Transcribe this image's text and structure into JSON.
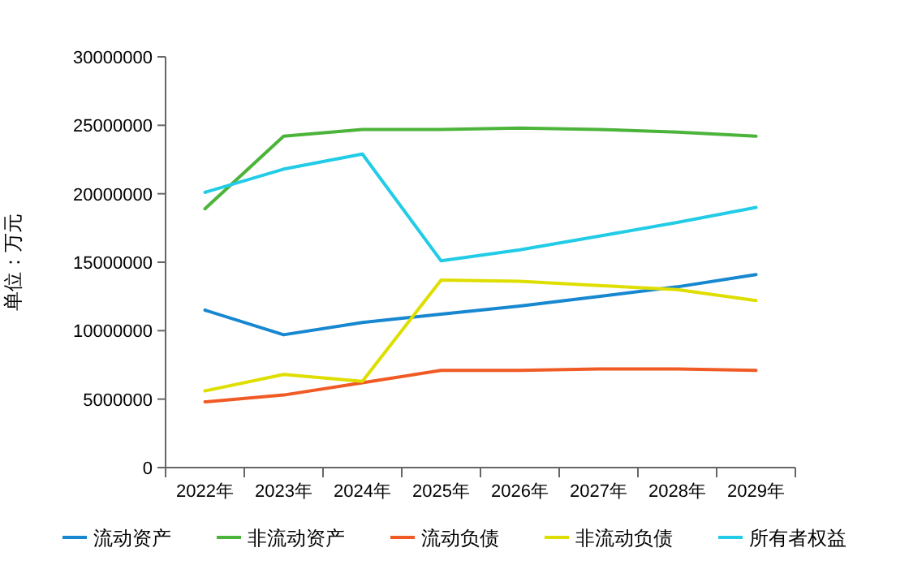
{
  "chart_data": {
    "type": "line",
    "ylabel": "单位：万元",
    "categories": [
      "2022年",
      "2023年",
      "2024年",
      "2025年",
      "2026年",
      "2027年",
      "2028年",
      "2029年"
    ],
    "ylim": [
      0,
      30000000
    ],
    "yticks": [
      0,
      5000000,
      10000000,
      15000000,
      20000000,
      25000000,
      30000000
    ],
    "grid": false,
    "legend": "bottom",
    "marker": "none",
    "line_style": "solid",
    "series": [
      {
        "name": "流动资产",
        "color": "#1787d0",
        "values": [
          11500000,
          9700000,
          10600000,
          11200000,
          11800000,
          12500000,
          13200000,
          14100000
        ]
      },
      {
        "name": "非流动资产",
        "color": "#4cb43a",
        "values": [
          18900000,
          24200000,
          24700000,
          24700000,
          24800000,
          24700000,
          24500000,
          24200000
        ]
      },
      {
        "name": "流动负债",
        "color": "#f05a24",
        "values": [
          4800000,
          5300000,
          6200000,
          7100000,
          7100000,
          7200000,
          7200000,
          7100000
        ]
      },
      {
        "name": "非流动负债",
        "color": "#dede00",
        "values": [
          5600000,
          6800000,
          6300000,
          13700000,
          13600000,
          13300000,
          13000000,
          12200000
        ]
      },
      {
        "name": "所有者权益",
        "color": "#22cce6",
        "values": [
          20100000,
          21800000,
          22900000,
          15100000,
          15900000,
          16900000,
          17900000,
          19000000
        ]
      }
    ]
  }
}
